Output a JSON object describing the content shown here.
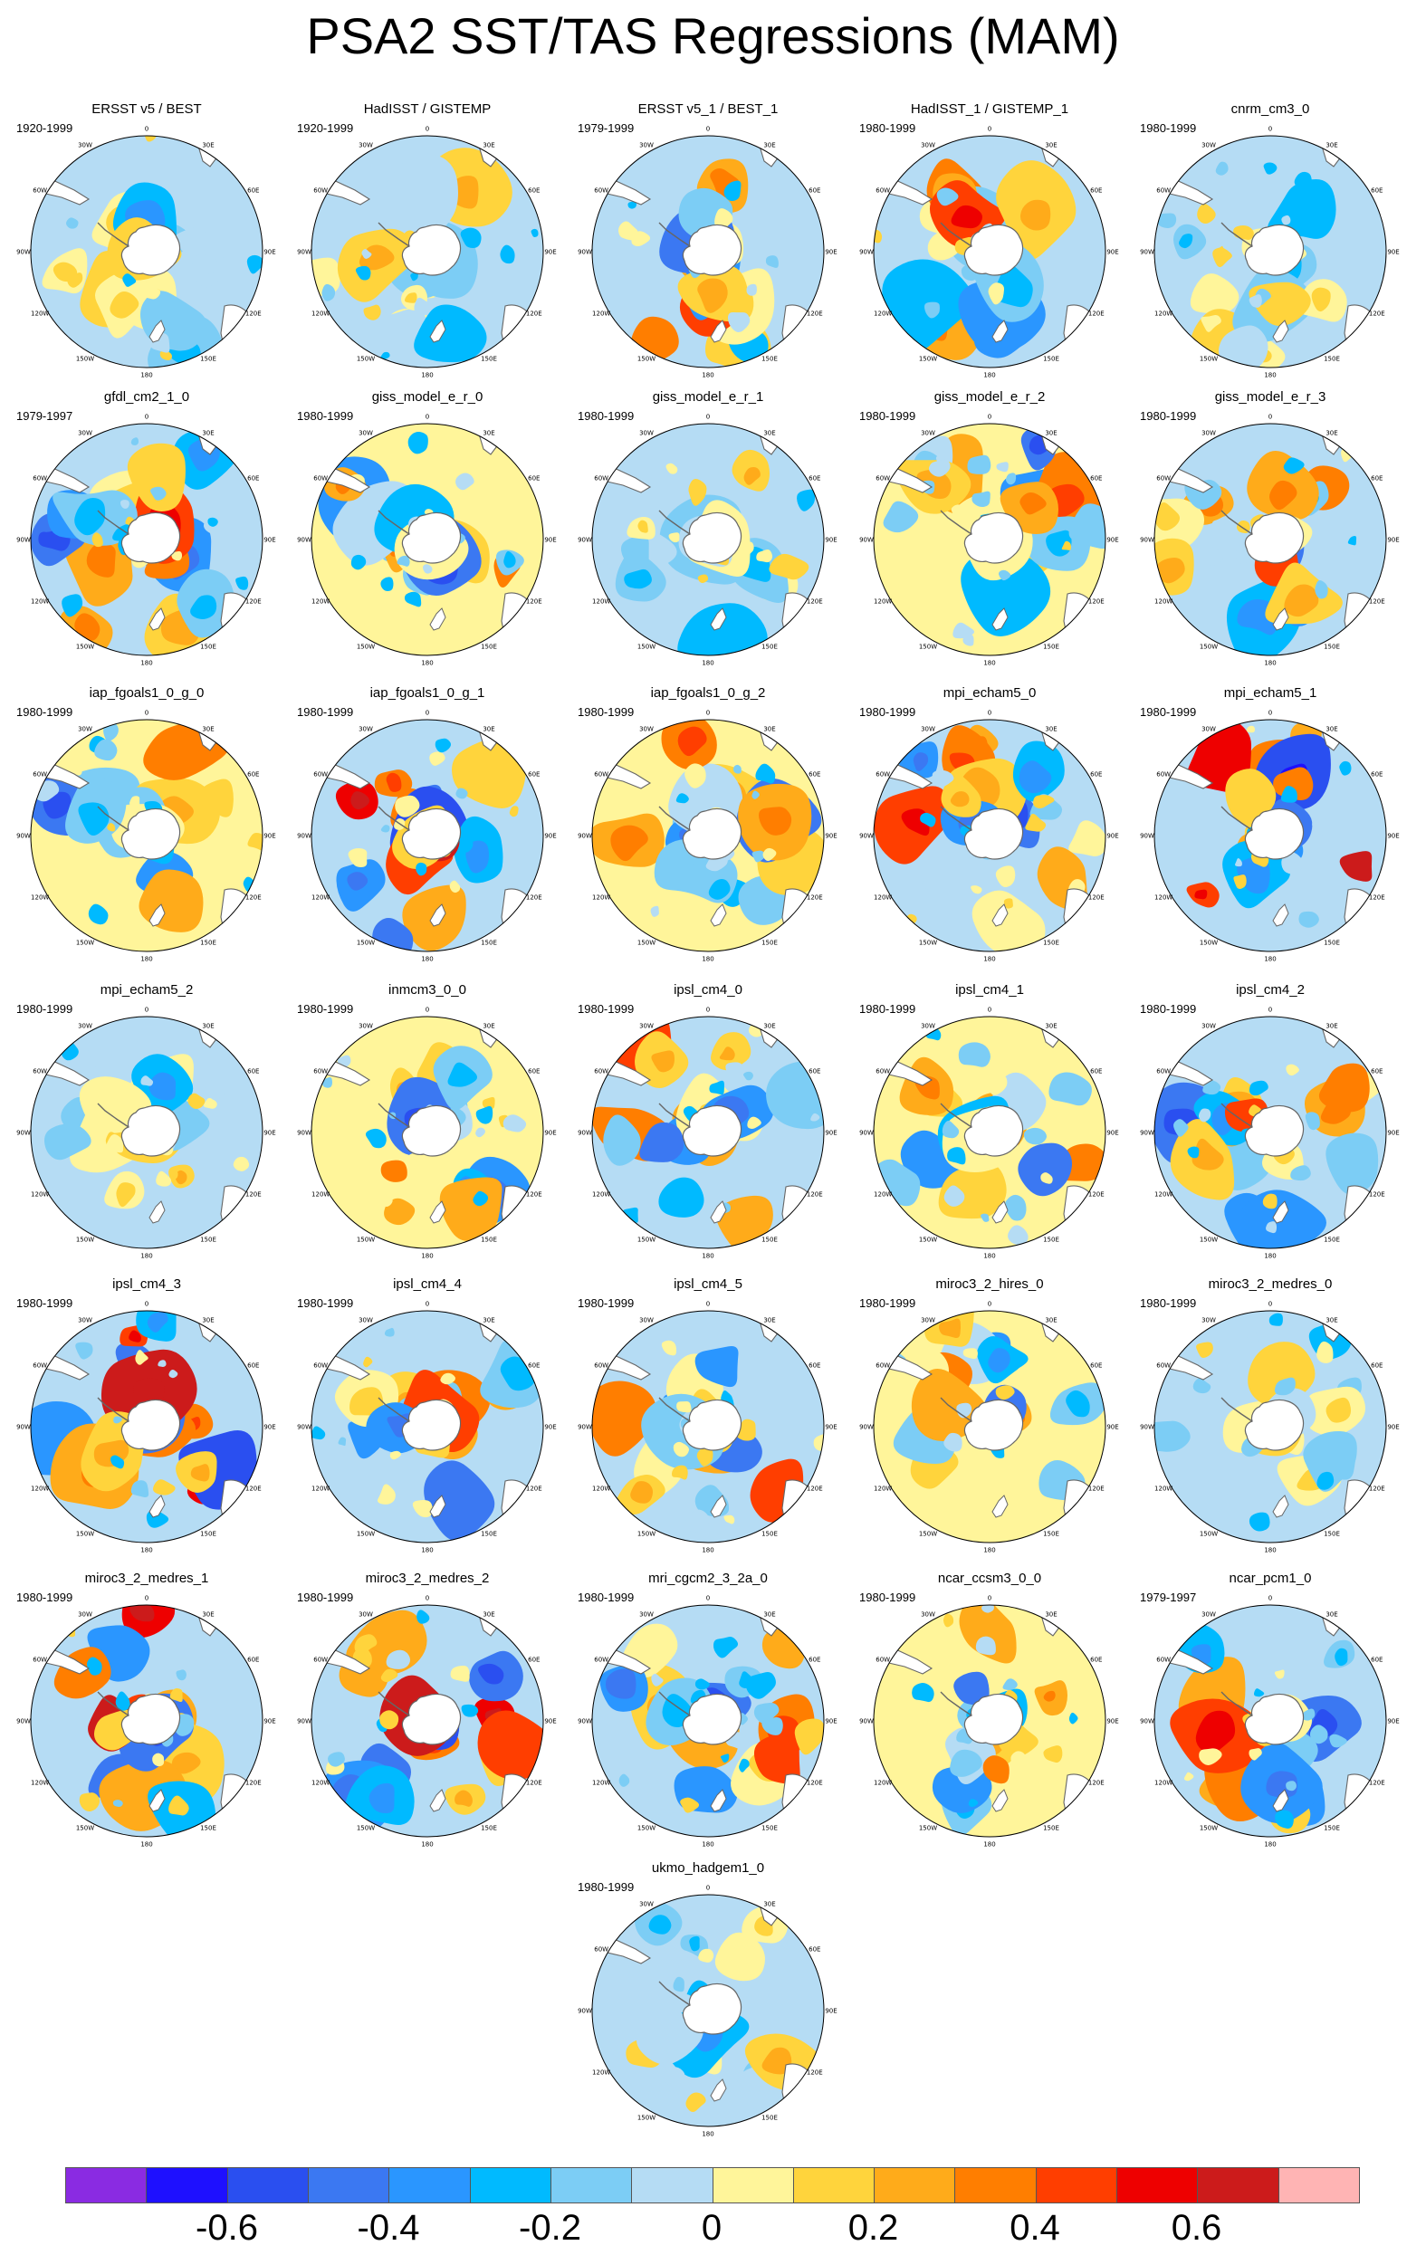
{
  "title": "PSA2 SST/TAS Regressions (MAM)",
  "longitude_labels": [
    "0",
    "30E",
    "60E",
    "90E",
    "120E",
    "150E",
    "180",
    "150W",
    "120W",
    "90W",
    "60W",
    "30W"
  ],
  "panels": [
    {
      "name": "ERSST v5 / BEST",
      "period": "1920-1999",
      "pattern": "weak"
    },
    {
      "name": "HadISST / GISTEMP",
      "period": "1920-1999",
      "pattern": "weak"
    },
    {
      "name": "ERSST v5_1 / BEST_1",
      "period": "1979-1999",
      "pattern": "psa"
    },
    {
      "name": "HadISST_1 / GISTEMP_1",
      "period": "1980-1999",
      "pattern": "psa"
    },
    {
      "name": "cnrm_cm3_0",
      "period": "1980-1999",
      "pattern": "weak"
    },
    {
      "name": "gfdl_cm2_1_0",
      "period": "1979-1997",
      "pattern": "psa"
    },
    {
      "name": "giss_model_e_r_0",
      "period": "1980-1999",
      "pattern": "mixed"
    },
    {
      "name": "giss_model_e_r_1",
      "period": "1980-1999",
      "pattern": "weak"
    },
    {
      "name": "giss_model_e_r_2",
      "period": "1980-1999",
      "pattern": "mixed"
    },
    {
      "name": "giss_model_e_r_3",
      "period": "1980-1999",
      "pattern": "psa"
    },
    {
      "name": "iap_fgoals1_0_g_0",
      "period": "1980-1999",
      "pattern": "mixed"
    },
    {
      "name": "iap_fgoals1_0_g_1",
      "period": "1980-1999",
      "pattern": "strong"
    },
    {
      "name": "iap_fgoals1_0_g_2",
      "period": "1980-1999",
      "pattern": "mixed"
    },
    {
      "name": "mpi_echam5_0",
      "period": "1980-1999",
      "pattern": "psa"
    },
    {
      "name": "mpi_echam5_1",
      "period": "1980-1999",
      "pattern": "strong"
    },
    {
      "name": "mpi_echam5_2",
      "period": "1980-1999",
      "pattern": "weak"
    },
    {
      "name": "inmcm3_0_0",
      "period": "1980-1999",
      "pattern": "mixed"
    },
    {
      "name": "ipsl_cm4_0",
      "period": "1980-1999",
      "pattern": "psa"
    },
    {
      "name": "ipsl_cm4_1",
      "period": "1980-1999",
      "pattern": "mixed"
    },
    {
      "name": "ipsl_cm4_2",
      "period": "1980-1999",
      "pattern": "psa"
    },
    {
      "name": "ipsl_cm4_3",
      "period": "1980-1999",
      "pattern": "strong"
    },
    {
      "name": "ipsl_cm4_4",
      "period": "1980-1999",
      "pattern": "psa"
    },
    {
      "name": "ipsl_cm4_5",
      "period": "1980-1999",
      "pattern": "psa"
    },
    {
      "name": "miroc3_2_hires_0",
      "period": "1980-1999",
      "pattern": "mixed"
    },
    {
      "name": "miroc3_2_medres_0",
      "period": "1980-1999",
      "pattern": "weak"
    },
    {
      "name": "miroc3_2_medres_1",
      "period": "1980-1999",
      "pattern": "strong"
    },
    {
      "name": "miroc3_2_medres_2",
      "period": "1980-1999",
      "pattern": "strong"
    },
    {
      "name": "mri_cgcm2_3_2a_0",
      "period": "1980-1999",
      "pattern": "psa"
    },
    {
      "name": "ncar_ccsm3_0_0",
      "period": "1980-1999",
      "pattern": "mixed"
    },
    {
      "name": "ncar_pcm1_0",
      "period": "1979-1997",
      "pattern": "psa"
    },
    {
      "name": "ukmo_hadgem1_0",
      "period": "1980-1999",
      "pattern": "weak"
    }
  ],
  "colorbar": {
    "colors": [
      "#8a2be2",
      "#1e10ff",
      "#2a4ff0",
      "#3b78f2",
      "#2a96ff",
      "#00baff",
      "#7ccdf5",
      "#b5dcf4",
      "#fff59a",
      "#ffd43c",
      "#ffab1a",
      "#ff7e00",
      "#ff3e00",
      "#ee0000",
      "#cc1b1b",
      "#ffb4b4"
    ],
    "tick_labels": [
      "-0.6",
      "-0.4",
      "-0.2",
      "0",
      "0.2",
      "0.4",
      "0.6"
    ]
  }
}
